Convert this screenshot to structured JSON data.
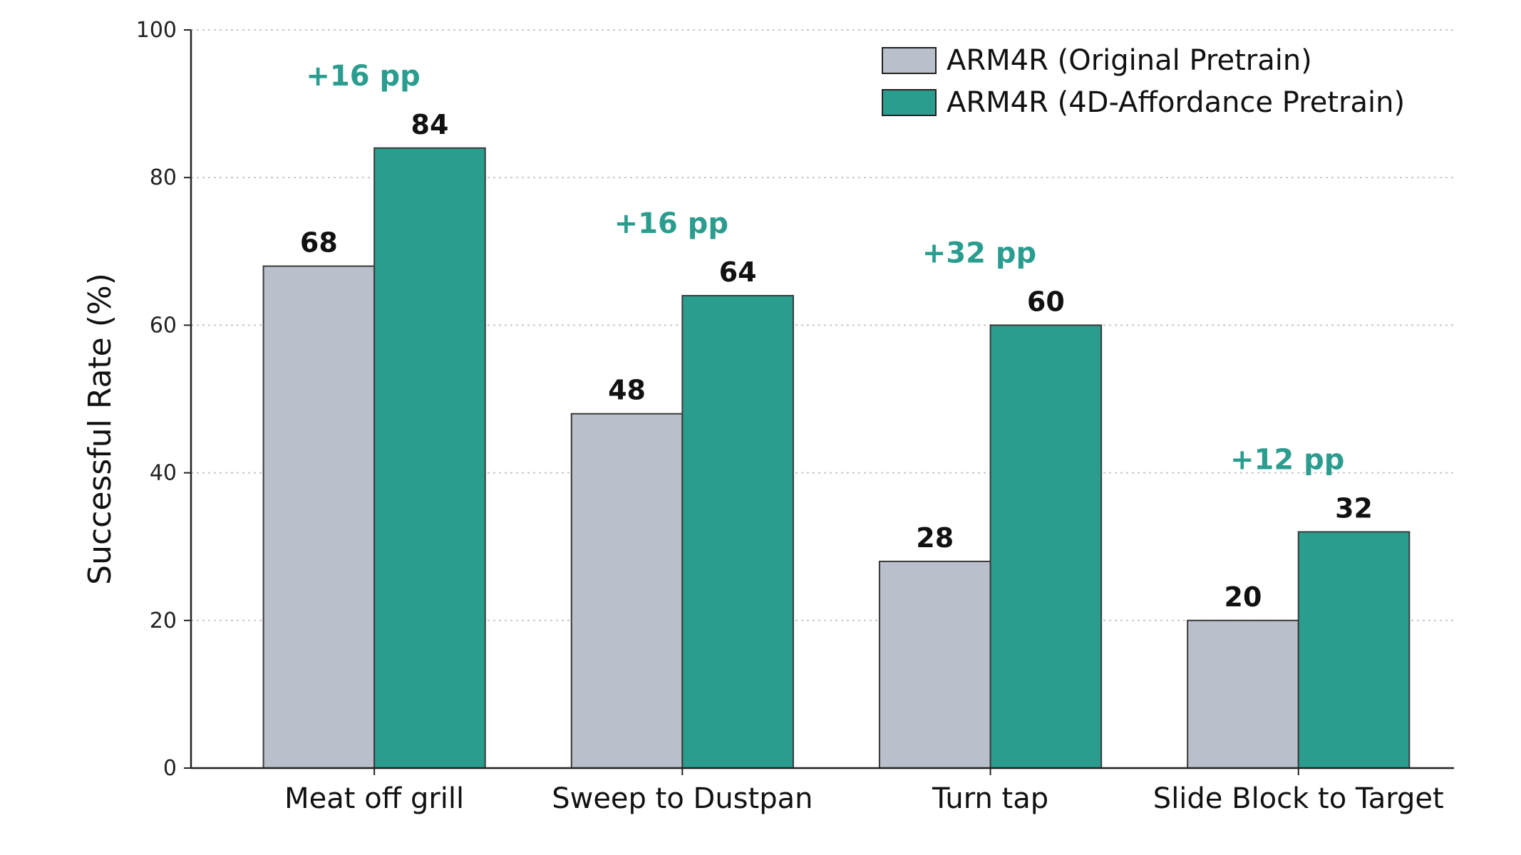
{
  "chart_data": {
    "type": "bar",
    "title": "",
    "xlabel": "",
    "ylabel": "Successful Rate (%)",
    "ylim": [
      0,
      100
    ],
    "yticks": [
      0,
      20,
      40,
      60,
      80,
      100
    ],
    "grid": "horizontal dotted",
    "legend_position": "top-right",
    "categories": [
      "Meat off grill",
      "Sweep to Dustpan",
      "Turn tap",
      "Slide Block to Target"
    ],
    "series": [
      {
        "name": "ARM4R (Original Pretrain)",
        "color": "#b9c0cb",
        "values": [
          68,
          48,
          28,
          20
        ]
      },
      {
        "name": "ARM4R (4D-Affordance Pretrain)",
        "color": "#2a9d8f",
        "values": [
          84,
          64,
          60,
          32
        ]
      }
    ],
    "annotations": [
      "+16 pp",
      "+16 pp",
      "+32 pp",
      "+12 pp"
    ],
    "annotation_color": "#2a9d8f"
  }
}
